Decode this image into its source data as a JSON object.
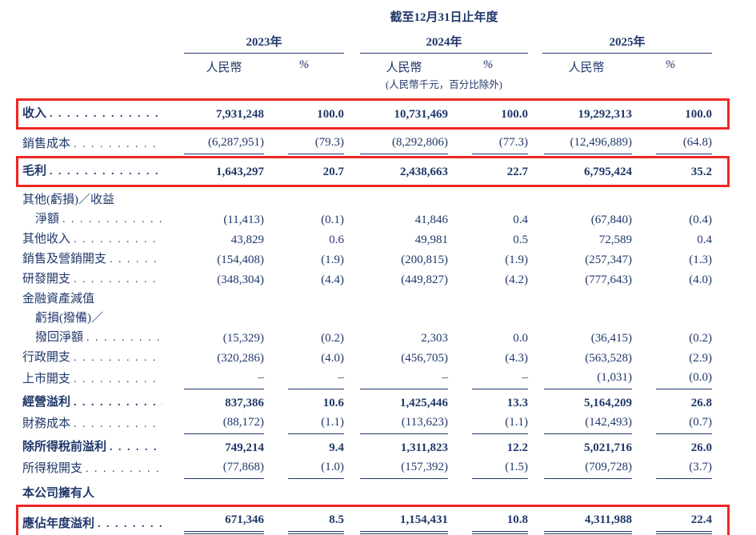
{
  "colors": {
    "text": "#20386b",
    "highlight_border": "#ee2724"
  },
  "header": {
    "period_title": "截至12月31日止年度",
    "groups": [
      {
        "year": "2023年",
        "cols": [
          "人民幣",
          "%"
        ]
      },
      {
        "year": "2024年",
        "cols": [
          "人民幣",
          "%"
        ],
        "note": "(人民幣千元，百分比除外)"
      },
      {
        "year": "2025年",
        "cols": [
          "人民幣",
          "%"
        ]
      }
    ]
  },
  "rows": [
    {
      "name": "revenue",
      "label_lines": [
        "收入"
      ],
      "dots": true,
      "bold": true,
      "highlight": true,
      "values": [
        "7,931,248",
        "100.0",
        "10,731,469",
        "100.0",
        "19,292,313",
        "100.0"
      ]
    },
    {
      "name": "cost-of-sales",
      "label_lines": [
        "銷售成本"
      ],
      "dots": true,
      "rule_below": true,
      "values": [
        "(6,287,951)",
        "(79.3)",
        "(8,292,806)",
        "(77.3)",
        "(12,496,889)",
        "(64.8)"
      ]
    },
    {
      "name": "gross-profit",
      "label_lines": [
        "毛利"
      ],
      "dots": true,
      "bold": true,
      "highlight": true,
      "values": [
        "1,643,297",
        "20.7",
        "2,438,663",
        "22.7",
        "6,795,424",
        "35.2"
      ]
    },
    {
      "name": "other-losses-gains-net",
      "label_lines": [
        "其他(虧損)／收益",
        "淨額"
      ],
      "dots": true,
      "values": [
        "(11,413)",
        "(0.1)",
        "41,846",
        "0.4",
        "(67,840)",
        "(0.4)"
      ]
    },
    {
      "name": "other-income",
      "label_lines": [
        "其他收入"
      ],
      "dots": true,
      "values": [
        "43,829",
        "0.6",
        "49,981",
        "0.5",
        "72,589",
        "0.4"
      ]
    },
    {
      "name": "selling-marketing-expenses",
      "label_lines": [
        "銷售及營銷開支"
      ],
      "dots": true,
      "values": [
        "(154,408)",
        "(1.9)",
        "(200,815)",
        "(1.9)",
        "(257,347)",
        "(1.3)"
      ]
    },
    {
      "name": "rd-expenses",
      "label_lines": [
        "研發開支"
      ],
      "dots": true,
      "values": [
        "(348,304)",
        "(4.4)",
        "(449,827)",
        "(4.2)",
        "(777,643)",
        "(4.0)"
      ]
    },
    {
      "name": "impairment-of-financial-assets",
      "label_lines": [
        "金融資產減值",
        "虧損(撥備)／",
        "撥回淨額"
      ],
      "dots": true,
      "values": [
        "(15,329)",
        "(0.2)",
        "2,303",
        "0.0",
        "(36,415)",
        "(0.2)"
      ]
    },
    {
      "name": "admin-expenses",
      "label_lines": [
        "行政開支"
      ],
      "dots": true,
      "values": [
        "(320,286)",
        "(4.0)",
        "(456,705)",
        "(4.3)",
        "(563,528)",
        "(2.9)"
      ]
    },
    {
      "name": "listing-expenses",
      "label_lines": [
        "上市開支"
      ],
      "dots": true,
      "rule_below": true,
      "values": [
        "–",
        "–",
        "–",
        "–",
        "(1,031)",
        "(0.0)"
      ]
    },
    {
      "name": "operating-profit",
      "label_lines": [
        "經營溢利"
      ],
      "dots": true,
      "bold": true,
      "values": [
        "837,386",
        "10.6",
        "1,425,446",
        "13.3",
        "5,164,209",
        "26.8"
      ]
    },
    {
      "name": "finance-costs",
      "label_lines": [
        "財務成本"
      ],
      "dots": true,
      "rule_below": true,
      "values": [
        "(88,172)",
        "(1.1)",
        "(113,623)",
        "(1.1)",
        "(142,493)",
        "(0.7)"
      ]
    },
    {
      "name": "profit-before-income-tax",
      "label_lines": [
        "除所得稅前溢利"
      ],
      "dots": true,
      "bold": true,
      "values": [
        "749,214",
        "9.4",
        "1,311,823",
        "12.2",
        "5,021,716",
        "26.0"
      ]
    },
    {
      "name": "income-tax-expense",
      "label_lines": [
        "所得稅開支"
      ],
      "dots": true,
      "rule_below": true,
      "values": [
        "(77,868)",
        "(1.0)",
        "(157,392)",
        "(1.5)",
        "(709,728)",
        "(3.7)"
      ]
    },
    {
      "name": "owners-heading",
      "label_lines": [
        "本公司擁有人"
      ],
      "dots": false,
      "bold": true,
      "values": null
    },
    {
      "name": "profit-attributable-to-owners",
      "label_lines": [
        "應佔年度溢利"
      ],
      "dots": true,
      "bold": true,
      "highlight": true,
      "double_rule": true,
      "values": [
        "671,346",
        "8.5",
        "1,154,431",
        "10.8",
        "4,311,988",
        "22.4"
      ]
    }
  ]
}
